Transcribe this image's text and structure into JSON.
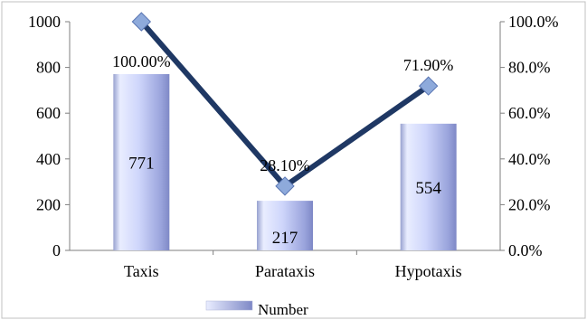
{
  "chart_data": {
    "type": "bar",
    "categories": [
      "Taxis",
      "Parataxis",
      "Hypotaxis"
    ],
    "series": [
      {
        "name": "Number",
        "type": "bar",
        "axis": "left",
        "values": [
          771,
          217,
          554
        ],
        "labels": [
          "771",
          "217",
          "554"
        ]
      },
      {
        "type": "line",
        "axis": "right",
        "values": [
          100.0,
          28.1,
          71.9
        ],
        "labels": [
          "100.00%",
          "28.10%",
          "71.90%"
        ]
      }
    ],
    "y_left": {
      "ticks": [
        "0",
        "200",
        "400",
        "600",
        "800",
        "1000"
      ],
      "lim": [
        0,
        1000
      ]
    },
    "y_right": {
      "ticks": [
        "0.0%",
        "20.0%",
        "40.0%",
        "60.0%",
        "80.0%",
        "100.0%"
      ],
      "lim": [
        0,
        100
      ]
    },
    "legend": {
      "position": "bottom",
      "entries": [
        "Number"
      ]
    },
    "grid": false,
    "colors": {
      "bar_light": "#eef1ff",
      "bar_mid": "#c8d0f6",
      "bar_dark": "#7e88c6",
      "line": "#1f3864",
      "marker": "#8eaadb",
      "marker_stroke": "#5a76b3",
      "axis": "#7f7f7f",
      "border": "#c0c0c0"
    }
  }
}
